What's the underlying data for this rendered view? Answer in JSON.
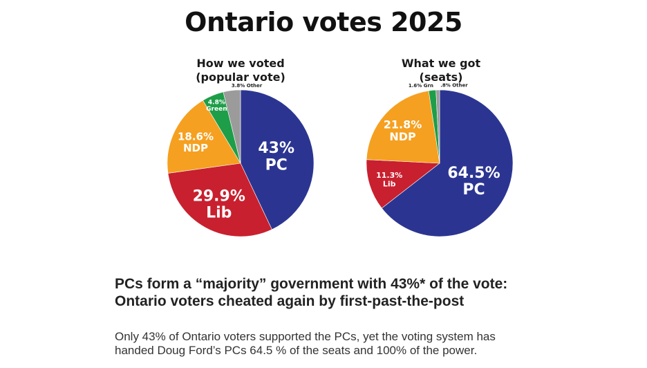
{
  "page": {
    "title": "Ontario votes 2025",
    "headline_line1": "PCs form a “majority” government with 43%* of the vote:",
    "headline_line2": "Ontario voters cheated again by first-past-the-post",
    "body_line1": "Only 43% of Ontario voters supported the PCs, yet the voting system has",
    "body_line2": "handed Doug Ford’s PCs 64.5 % of the seats and 100% of the power."
  },
  "colors": {
    "PC": "#2b3591",
    "Lib": "#c8202f",
    "NDP": "#f5a020",
    "Green": "#1e9e48",
    "Other": "#9b9b9b"
  },
  "chart_data": [
    {
      "type": "pie",
      "title_line1": "How we voted",
      "title_line2": "(popular vote)",
      "slices": [
        {
          "name": "PC",
          "value": 43.0,
          "label_pct": "43%",
          "label_name": "PC"
        },
        {
          "name": "Lib",
          "value": 29.9,
          "label_pct": "29.9%",
          "label_name": "Lib"
        },
        {
          "name": "NDP",
          "value": 18.6,
          "label_pct": "18.6%",
          "label_name": "NDP"
        },
        {
          "name": "Green",
          "value": 4.8,
          "label_pct": "4.8%",
          "label_name": "Green"
        },
        {
          "name": "Other",
          "value": 3.8,
          "label_pct": "3.8% Other",
          "label_name": ""
        }
      ]
    },
    {
      "type": "pie",
      "title_line1": "What we got",
      "title_line2": "(seats)",
      "slices": [
        {
          "name": "PC",
          "value": 64.5,
          "label_pct": "64.5%",
          "label_name": "PC"
        },
        {
          "name": "Lib",
          "value": 11.3,
          "label_pct": "11.3%",
          "label_name": "Lib"
        },
        {
          "name": "NDP",
          "value": 21.8,
          "label_pct": "21.8%",
          "label_name": "NDP"
        },
        {
          "name": "Green",
          "value": 1.6,
          "label_pct": "1.6% Grn",
          "label_name": ""
        },
        {
          "name": "Other",
          "value": 0.8,
          "label_pct": ".8% Other",
          "label_name": ""
        }
      ]
    }
  ]
}
